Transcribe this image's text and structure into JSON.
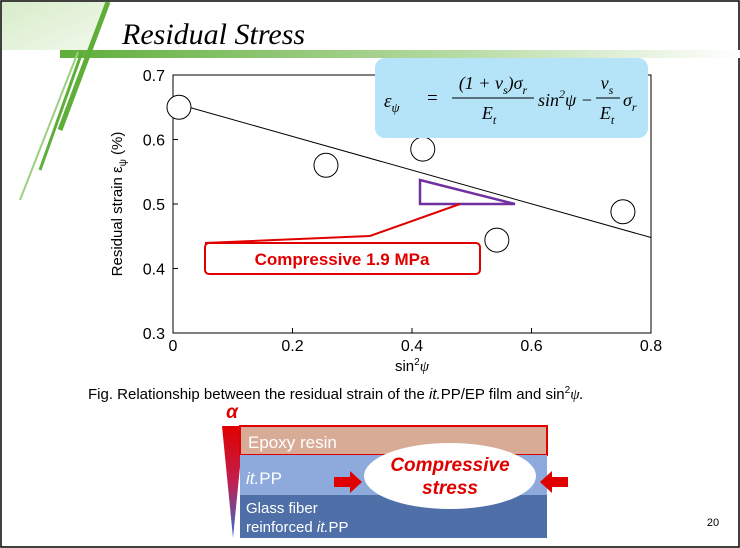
{
  "chart_data": {
    "type": "scatter",
    "title": "Residual Stress",
    "x_label": {
      "text": "sin",
      "sup": "2",
      "var": "ψ"
    },
    "y_label": {
      "text": "Residual strain ε",
      "sub": "ψ",
      "unit": " (%)"
    },
    "x": [
      0.01,
      0.256,
      0.418,
      0.542,
      0.753
    ],
    "values": [
      0.65,
      0.56,
      0.585,
      0.444,
      0.488
    ],
    "color": "#000000",
    "fit_line": {
      "x": [
        0,
        0.8
      ],
      "y": [
        0.657,
        0.448
      ]
    },
    "xlim": [
      0,
      0.8
    ],
    "xticks": [
      0,
      0.2,
      0.4,
      0.6,
      0.8
    ],
    "ylim": [
      0.3,
      0.7
    ],
    "yticks": [
      0.3,
      0.4,
      0.5,
      0.6,
      0.7
    ],
    "annotation": "Compressive 1.9 MPa",
    "equation": {
      "lhs": "ε",
      "lhs_sub": "ψ",
      "eq": "=",
      "num1": "(1 + ν",
      "num1_sub": "s",
      "num1_b": ")σ",
      "num1_sub2": "r",
      "den1": "E",
      "den1_sub": "t",
      "mid": "sin",
      "mid_sup": "2",
      "mid_b": "ψ −",
      "num2": "ν",
      "num2_sub": "s",
      "den2": "E",
      "den2_sub": "t",
      "tail": "σ",
      "tail_sub": "r"
    },
    "caption": [
      "Fig. Relationship between the residual strain of the ",
      "it.",
      "PP/EP film and sin",
      "2",
      "ψ."
    ]
  },
  "diagram": {
    "alpha": "α",
    "layer1": "Epoxy resin",
    "layer2_it": "it.",
    "layer2": "PP",
    "layer3_a": "Glass fiber",
    "layer3_b": "reinforced ",
    "layer3_it": "it.",
    "layer3_c": "PP",
    "stress": [
      "Compressive",
      "stress"
    ]
  },
  "page_number": "20"
}
